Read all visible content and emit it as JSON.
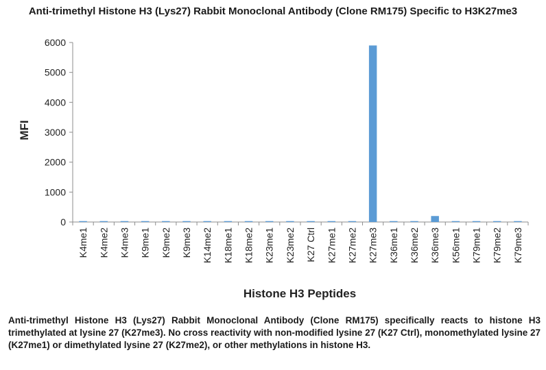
{
  "chart_data": {
    "type": "bar",
    "title": "Anti-trimethyl Histone H3 (Lys27) Rabbit Monoclonal Antibody (Clone RM175) Specific to H3K27me3",
    "xlabel": "Histone H3 Peptides",
    "ylabel": "MFI",
    "ylim": [
      0,
      6000
    ],
    "yticks": [
      0,
      1000,
      2000,
      3000,
      4000,
      5000,
      6000
    ],
    "grid": false,
    "categories": [
      "K4me1",
      "K4me2",
      "K4me3",
      "K9me1",
      "K9me2",
      "K9me3",
      "K14me2",
      "K18me1",
      "K18me2",
      "K23me1",
      "K23me2",
      "K27 Ctrl",
      "K27me1",
      "K27me2",
      "K27me3",
      "K36me1",
      "K36me2",
      "K36me3",
      "K56me1",
      "K79me1",
      "K79me2",
      "K79me3"
    ],
    "values": [
      30,
      30,
      30,
      30,
      30,
      30,
      30,
      30,
      30,
      30,
      30,
      30,
      30,
      30,
      5900,
      30,
      30,
      200,
      30,
      30,
      30,
      30
    ],
    "bar_color": "#5b9bd5"
  },
  "caption": "Anti-trimethyl Histone H3 (Lys27) Rabbit Monoclonal Antibody (Clone RM175) specifically reacts to histone H3 trimethylated at lysine 27 (K27me3). No cross reactivity with non-modified lysine 27 (K27 Ctrl), monomethylated lysine 27 (K27me1) or dimethylated lysine 27 (K27me2), or other methylations in histone H3."
}
